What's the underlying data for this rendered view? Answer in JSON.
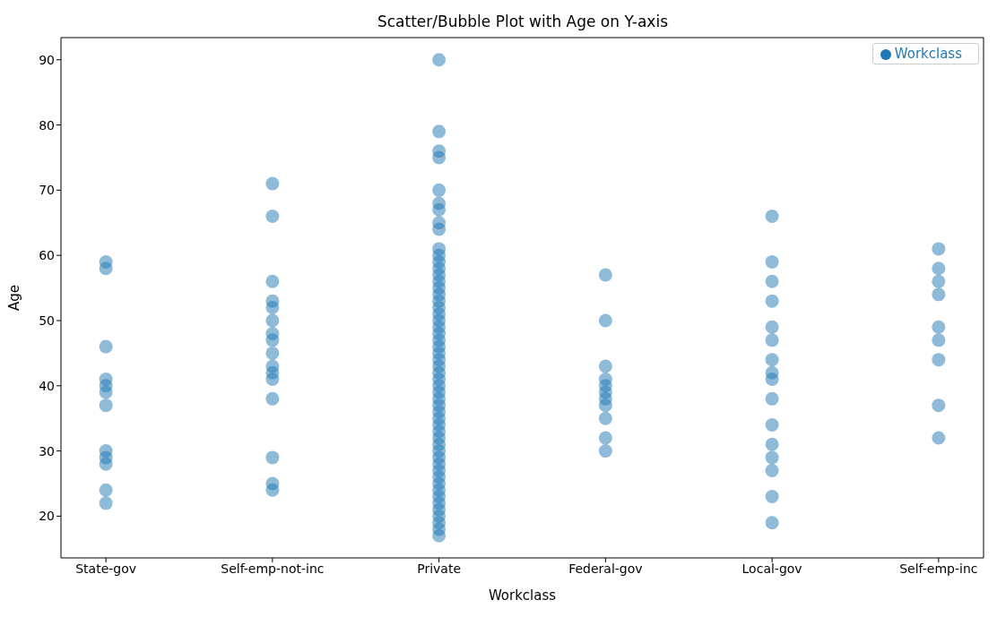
{
  "chart_data": {
    "type": "scatter",
    "title": "Scatter/Bubble Plot with Age on Y-axis",
    "xlabel": "Workclass",
    "ylabel": "Age",
    "categories": [
      "State-gov",
      "Self-emp-not-inc",
      "Private",
      "Federal-gov",
      "Local-gov",
      "Self-emp-inc"
    ],
    "ylim": [
      13.6,
      93.4
    ],
    "yticks": [
      20,
      30,
      40,
      50,
      60,
      70,
      80,
      90
    ],
    "grid": false,
    "legend": "top right",
    "marker": "circle",
    "series": [
      {
        "name": "Workclass",
        "color": "#1f77b4",
        "x": [
          "State-gov",
          "State-gov",
          "State-gov",
          "State-gov",
          "State-gov",
          "State-gov",
          "State-gov",
          "State-gov",
          "State-gov",
          "State-gov",
          "State-gov",
          "State-gov",
          "Self-emp-not-inc",
          "Self-emp-not-inc",
          "Self-emp-not-inc",
          "Self-emp-not-inc",
          "Self-emp-not-inc",
          "Self-emp-not-inc",
          "Self-emp-not-inc",
          "Self-emp-not-inc",
          "Self-emp-not-inc",
          "Self-emp-not-inc",
          "Self-emp-not-inc",
          "Self-emp-not-inc",
          "Self-emp-not-inc",
          "Self-emp-not-inc",
          "Self-emp-not-inc",
          "Self-emp-not-inc",
          "Private",
          "Private",
          "Private",
          "Private",
          "Private",
          "Private",
          "Private",
          "Private",
          "Private",
          "Private",
          "Private",
          "Private",
          "Private",
          "Private",
          "Private",
          "Private",
          "Private",
          "Private",
          "Private",
          "Private",
          "Private",
          "Private",
          "Private",
          "Private",
          "Private",
          "Private",
          "Private",
          "Private",
          "Private",
          "Private",
          "Private",
          "Private",
          "Private",
          "Private",
          "Private",
          "Private",
          "Private",
          "Private",
          "Private",
          "Private",
          "Private",
          "Private",
          "Private",
          "Private",
          "Private",
          "Private",
          "Private",
          "Private",
          "Private",
          "Private",
          "Private",
          "Private",
          "Private",
          "Private",
          "Federal-gov",
          "Federal-gov",
          "Federal-gov",
          "Federal-gov",
          "Federal-gov",
          "Federal-gov",
          "Federal-gov",
          "Federal-gov",
          "Federal-gov",
          "Federal-gov",
          "Federal-gov",
          "Local-gov",
          "Local-gov",
          "Local-gov",
          "Local-gov",
          "Local-gov",
          "Local-gov",
          "Local-gov",
          "Local-gov",
          "Local-gov",
          "Local-gov",
          "Local-gov",
          "Local-gov",
          "Local-gov",
          "Local-gov",
          "Local-gov",
          "Local-gov",
          "Self-emp-inc",
          "Self-emp-inc",
          "Self-emp-inc",
          "Self-emp-inc",
          "Self-emp-inc",
          "Self-emp-inc",
          "Self-emp-inc",
          "Self-emp-inc",
          "Self-emp-inc"
        ],
        "values": [
          59,
          58,
          46,
          41,
          40,
          39,
          37,
          30,
          29,
          28,
          24,
          22,
          71,
          66,
          56,
          53,
          52,
          50,
          48,
          47,
          45,
          43,
          42,
          41,
          38,
          29,
          25,
          24,
          17,
          18,
          19,
          20,
          21,
          22,
          23,
          24,
          25,
          26,
          27,
          28,
          29,
          30,
          31,
          32,
          33,
          34,
          35,
          36,
          37,
          38,
          39,
          40,
          41,
          42,
          43,
          44,
          45,
          46,
          47,
          48,
          49,
          50,
          51,
          52,
          53,
          54,
          55,
          56,
          57,
          58,
          59,
          60,
          61,
          64,
          65,
          67,
          68,
          70,
          75,
          76,
          79,
          90,
          57,
          50,
          43,
          41,
          40,
          39,
          38,
          37,
          35,
          32,
          30,
          66,
          59,
          56,
          53,
          49,
          47,
          44,
          42,
          41,
          38,
          34,
          31,
          29,
          27,
          23,
          19,
          61,
          58,
          56,
          54,
          49,
          47,
          44,
          37,
          32
        ]
      }
    ]
  }
}
